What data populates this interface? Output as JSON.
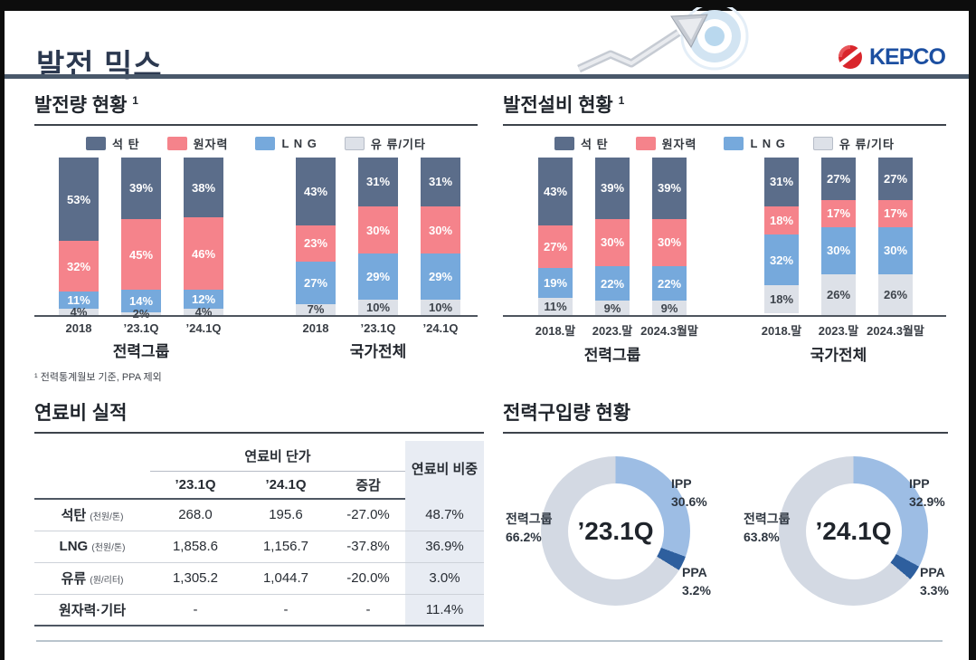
{
  "page_title": "발전 믹스",
  "logo": {
    "text": "KEPCO"
  },
  "sections": {
    "generation": {
      "title": "발전량 현황",
      "sup": "1"
    },
    "capacity": {
      "title": "발전설비 현황",
      "sup": "1"
    },
    "fuel": {
      "title": "연료비 실적"
    },
    "purchase": {
      "title": "전력구입량 현황"
    }
  },
  "chart_data": [
    {
      "type": "bar",
      "id": "generation-mix",
      "title": "발전량 현황",
      "stacked": true,
      "unit": "%",
      "ylim": [
        0,
        100
      ],
      "legend": [
        {
          "name": "석 탄",
          "color": "#5b6d8a"
        },
        {
          "name": "원자력",
          "color": "#f5838b"
        },
        {
          "name": "L N G",
          "color": "#76a9dc"
        },
        {
          "name": "유 류/기타",
          "color": "#dde1e8"
        }
      ],
      "segment_order_top_to_bottom": [
        "석 탄",
        "원자력",
        "L N G",
        "유 류/기타"
      ],
      "groups": [
        {
          "name": "전력그룹",
          "categories": [
            "2018",
            "’23.1Q",
            "’24.1Q"
          ],
          "bars": [
            [
              53,
              32,
              11,
              4
            ],
            [
              39,
              45,
              14,
              2
            ],
            [
              38,
              46,
              12,
              4
            ]
          ]
        },
        {
          "name": "국가전체",
          "categories": [
            "2018",
            "’23.1Q",
            "’24.1Q"
          ],
          "bars": [
            [
              43,
              23,
              27,
              7
            ],
            [
              31,
              30,
              29,
              10
            ],
            [
              31,
              30,
              29,
              10
            ]
          ]
        }
      ],
      "footnote": "¹ 전력통계월보 기준, PPA 제외"
    },
    {
      "type": "bar",
      "id": "capacity-mix",
      "title": "발전설비 현황",
      "stacked": true,
      "unit": "%",
      "ylim": [
        0,
        100
      ],
      "legend": [
        {
          "name": "석 탄",
          "color": "#5b6d8a"
        },
        {
          "name": "원자력",
          "color": "#f5838b"
        },
        {
          "name": "L N G",
          "color": "#76a9dc"
        },
        {
          "name": "유 류/기타",
          "color": "#dde1e8"
        }
      ],
      "segment_order_top_to_bottom": [
        "석 탄",
        "원자력",
        "L N G",
        "유 류/기타"
      ],
      "groups": [
        {
          "name": "전력그룹",
          "categories": [
            "2018.말",
            "2023.말",
            "2024.3월말"
          ],
          "bars": [
            [
              43,
              27,
              19,
              11
            ],
            [
              39,
              30,
              22,
              9
            ],
            [
              39,
              30,
              22,
              9
            ]
          ]
        },
        {
          "name": "국가전체",
          "categories": [
            "2018.말",
            "2023.말",
            "2024.3월말"
          ],
          "bars": [
            [
              31,
              18,
              32,
              18
            ],
            [
              27,
              17,
              30,
              26
            ],
            [
              27,
              17,
              30,
              26
            ]
          ]
        }
      ],
      "footnote": ""
    },
    {
      "type": "donut",
      "id": "purchase-23-1q",
      "center_label": "’23.1Q",
      "slices": [
        {
          "name": "IPP",
          "value": 30.6,
          "color": "#9dbde4",
          "pos": "top-right"
        },
        {
          "name": "PPA",
          "value": 3.2,
          "color": "#2e5f9e",
          "pos": "bottom-right"
        },
        {
          "name": "전력그룹",
          "value": 66.2,
          "color": "#d3d9e3",
          "pos": "left"
        }
      ]
    },
    {
      "type": "donut",
      "id": "purchase-24-1q",
      "center_label": "’24.1Q",
      "slices": [
        {
          "name": "IPP",
          "value": 32.9,
          "color": "#9dbde4",
          "pos": "top-right"
        },
        {
          "name": "PPA",
          "value": 3.3,
          "color": "#2e5f9e",
          "pos": "bottom-right"
        },
        {
          "name": "전력그룹",
          "value": 63.8,
          "color": "#d3d9e3",
          "pos": "left"
        }
      ]
    }
  ],
  "fuel_table": {
    "group_header": "연료비 단가",
    "col_headers": [
      "’23.1Q",
      "’24.1Q",
      "증감"
    ],
    "last_col_header": "연료비 비중",
    "rows": [
      {
        "label": "석탄",
        "unit": "(천원/톤)",
        "values": [
          "268.0",
          "195.6",
          "-27.0%"
        ],
        "share": "48.7%"
      },
      {
        "label": "LNG",
        "unit": "(천원/톤)",
        "values": [
          "1,858.6",
          "1,156.7",
          "-37.8%"
        ],
        "share": "36.9%"
      },
      {
        "label": "유류",
        "unit": "(원/리터)",
        "values": [
          "1,305.2",
          "1,044.7",
          "-20.0%"
        ],
        "share": "3.0%"
      },
      {
        "label": "원자력·기타",
        "unit": "",
        "values": [
          "-",
          "-",
          "-"
        ],
        "share": "11.4%"
      }
    ]
  },
  "colors": {
    "coal": "#5b6d8a",
    "nuclear": "#f5838b",
    "lng": "#76a9dc",
    "oil_other": "#dde1e8",
    "donut_group": "#d3d9e3",
    "donut_ipp": "#9dbde4",
    "donut_ppa": "#2e5f9e",
    "title_navy": "#2c3950",
    "rule": "#49586a",
    "logo_blue": "#1c4fa1",
    "logo_red": "#d9262c"
  }
}
